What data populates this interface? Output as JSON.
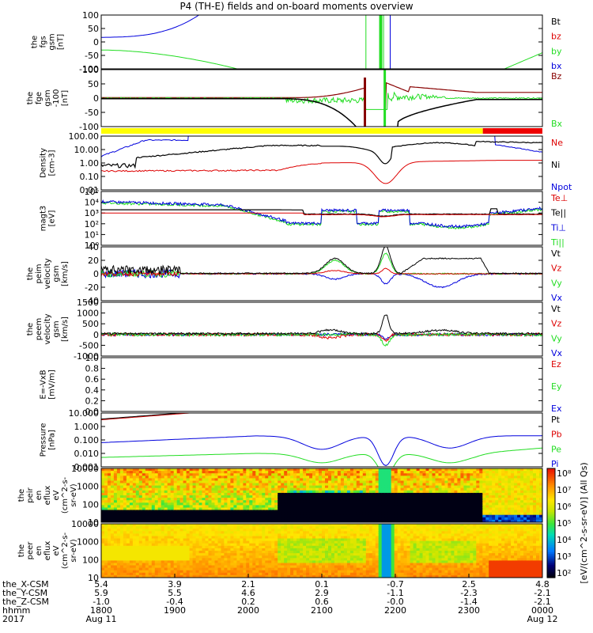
{
  "title": "P4 (TH-E) fields and on-board moments overview",
  "colors": {
    "black": "#000000",
    "red": "#dd0000",
    "green": "#22dd22",
    "blue": "#0000dd",
    "yellow": "#ffff00",
    "darkred": "#880000"
  },
  "chart_data": [
    {
      "type": "line",
      "id": "fgs",
      "ylabel": [
        "the",
        "fgs",
        "gsm",
        "[nT]"
      ],
      "yticks": [
        "100",
        "50",
        "0",
        "-50",
        "-100"
      ],
      "ylim": [
        -100,
        100
      ],
      "legend": [
        {
          "name": "Bt",
          "color": "black"
        },
        {
          "name": "bz",
          "color": "red"
        },
        {
          "name": "by",
          "color": "green"
        },
        {
          "name": "bx",
          "color": "blue"
        }
      ]
    },
    {
      "type": "line",
      "id": "fge",
      "ylabel": [
        "the",
        "fge",
        "gsm",
        "-100",
        "[nT]"
      ],
      "yticks": [
        "100",
        "50",
        "0",
        "-50",
        "-100"
      ],
      "ylim": [
        -100,
        100
      ],
      "legend": [
        {
          "name": "Bz",
          "color": "darkred"
        },
        {
          "name": "Bx",
          "color": "green"
        }
      ]
    },
    {
      "type": "line",
      "id": "density",
      "ylabel": [
        "Density",
        "[cm-3]"
      ],
      "yticks": [
        "100.00",
        "10.00",
        "1.00",
        "0.10",
        "0.01"
      ],
      "scale": "log",
      "legend": [
        {
          "name": "Ne",
          "color": "red"
        },
        {
          "name": "Ni",
          "color": "black"
        },
        {
          "name": "Npot",
          "color": "blue"
        }
      ]
    },
    {
      "type": "line",
      "id": "temp",
      "ylabel": [
        "magt3",
        "[eV]"
      ],
      "yticks": [
        "10⁵",
        "10⁴",
        "10³",
        "10²",
        "10¹",
        "10⁰"
      ],
      "scale": "log",
      "legend": [
        {
          "name": "Te⊥",
          "color": "red"
        },
        {
          "name": "Te||",
          "color": "black"
        },
        {
          "name": "Ti⊥",
          "color": "blue"
        },
        {
          "name": "Ti||",
          "color": "green"
        }
      ]
    },
    {
      "type": "line",
      "id": "peim",
      "ylabel": [
        "the",
        "peim",
        "velocity",
        "gsm",
        "[km/s]"
      ],
      "yticks": [
        "40",
        "20",
        "0",
        "-20",
        "-40"
      ],
      "ylim": [
        -40,
        40
      ],
      "legend": [
        {
          "name": "Vt",
          "color": "black"
        },
        {
          "name": "Vz",
          "color": "red"
        },
        {
          "name": "Vy",
          "color": "green"
        },
        {
          "name": "Vx",
          "color": "blue"
        }
      ]
    },
    {
      "type": "line",
      "id": "peem",
      "ylabel": [
        "the",
        "peem",
        "velocity",
        "gsm",
        "[km/s]"
      ],
      "yticks": [
        "1500",
        "1000",
        "500",
        "0",
        "-500",
        "-1000"
      ],
      "ylim": [
        -1000,
        1500
      ],
      "legend": [
        {
          "name": "Vt",
          "color": "black"
        },
        {
          "name": "Vz",
          "color": "red"
        },
        {
          "name": "Vy",
          "color": "green"
        },
        {
          "name": "Vx",
          "color": "blue"
        }
      ]
    },
    {
      "type": "line",
      "id": "efield",
      "ylabel": [
        "E=-VxB",
        "[mV/m]"
      ],
      "yticks": [
        "1.0",
        "0.8",
        "0.6",
        "0.4",
        "0.2",
        "0.0"
      ],
      "ylim": [
        0,
        1
      ],
      "legend": [
        {
          "name": "Ez",
          "color": "red"
        },
        {
          "name": "Ey",
          "color": "green"
        },
        {
          "name": "Ex",
          "color": "blue"
        }
      ]
    },
    {
      "type": "line",
      "id": "pressure",
      "ylabel": [
        "Pressure",
        "[nPa]"
      ],
      "yticks": [
        "10.000",
        "1.000",
        "0.100",
        "0.010",
        "0.001"
      ],
      "scale": "log",
      "legend": [
        {
          "name": "Pt",
          "color": "black"
        },
        {
          "name": "Pb",
          "color": "red"
        },
        {
          "name": "Pe",
          "color": "green"
        },
        {
          "name": "Pi",
          "color": "blue"
        }
      ]
    },
    {
      "type": "heatmap",
      "id": "peir",
      "ylabel": [
        "the",
        "peir",
        "en",
        "eflux",
        "eV",
        "(cm^2-s-",
        "sr-eV)"
      ],
      "yticks": [
        "10000",
        "1000",
        "100",
        "10"
      ],
      "scale": "log"
    },
    {
      "type": "heatmap",
      "id": "peer",
      "ylabel": [
        "the",
        "peer",
        "en",
        "eflux",
        "eV",
        "(cm^2-s-",
        "sr-eV)"
      ],
      "yticks": [
        "10000",
        "1000",
        "100",
        "10"
      ],
      "scale": "log"
    }
  ],
  "colorbar": {
    "ticks": [
      "10⁸",
      "10⁷",
      "10⁶",
      "10⁵",
      "10⁴",
      "10³",
      "10²"
    ],
    "label": "[eV/(cm^2-s-sr-eV)] (All Qs)"
  },
  "xaxis": {
    "rows": [
      {
        "label": "the_X-CSM",
        "values": [
          "5.4",
          "3.9",
          "2.1",
          "0.1",
          "-0.7",
          "2.5",
          "4.8"
        ]
      },
      {
        "label": "the_Y-CSM",
        "values": [
          "5.9",
          "5.5",
          "4.6",
          "2.9",
          "-1.1",
          "-2.3",
          "-2.1"
        ]
      },
      {
        "label": "the_Z-CSM",
        "values": [
          "-1.0",
          "-0.4",
          "0.2",
          "0.6",
          "-0.0",
          "-1.4",
          "-2.1"
        ]
      },
      {
        "label": "hhmm",
        "values": [
          "1800",
          "1900",
          "2000",
          "2100",
          "2200",
          "2300",
          "0000"
        ]
      }
    ],
    "year": "2017",
    "date_start": "Aug 11",
    "date_end": "Aug 12"
  }
}
